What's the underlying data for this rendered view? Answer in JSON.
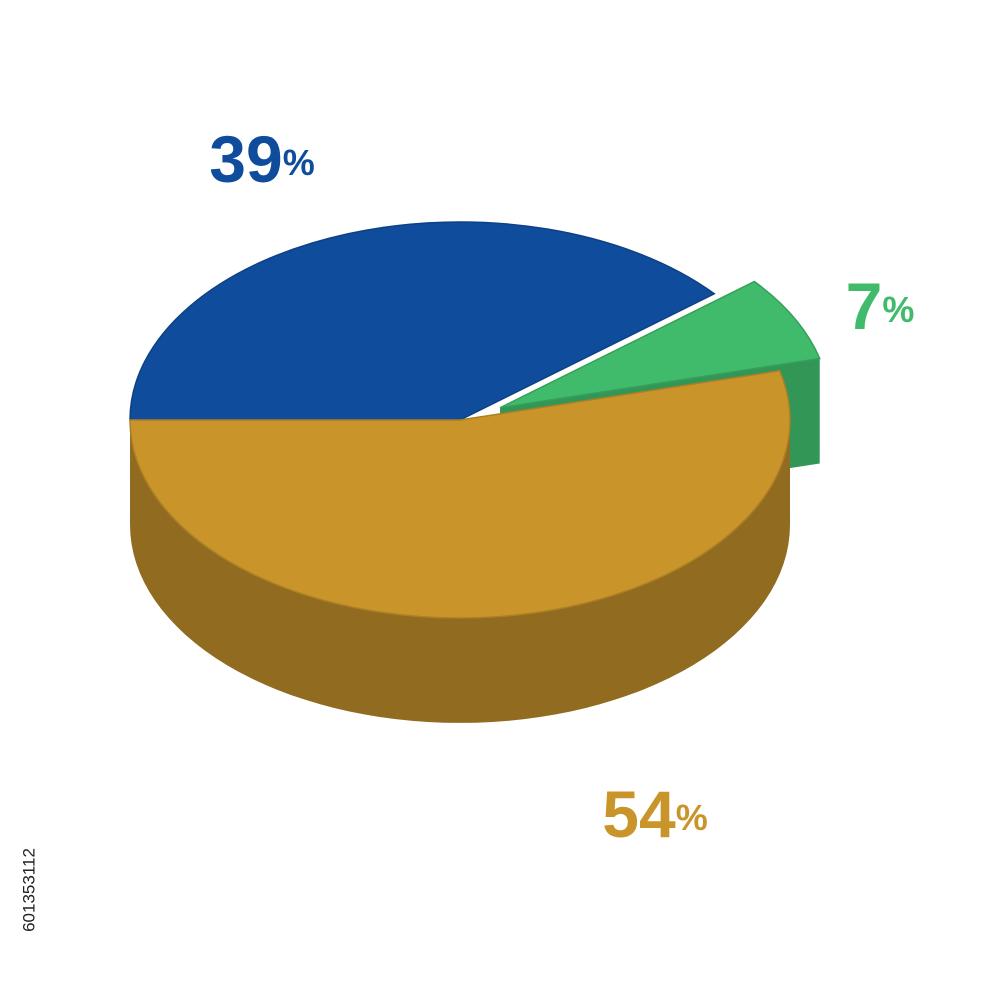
{
  "chart_data": {
    "type": "pie",
    "style": "3d",
    "values": [
      39,
      7,
      54
    ],
    "value_labels": [
      "39%",
      "7%",
      "54%"
    ],
    "colors": [
      "#0f4c9c",
      "#3fbb6b",
      "#c9952b"
    ]
  },
  "image_id": "601353112"
}
